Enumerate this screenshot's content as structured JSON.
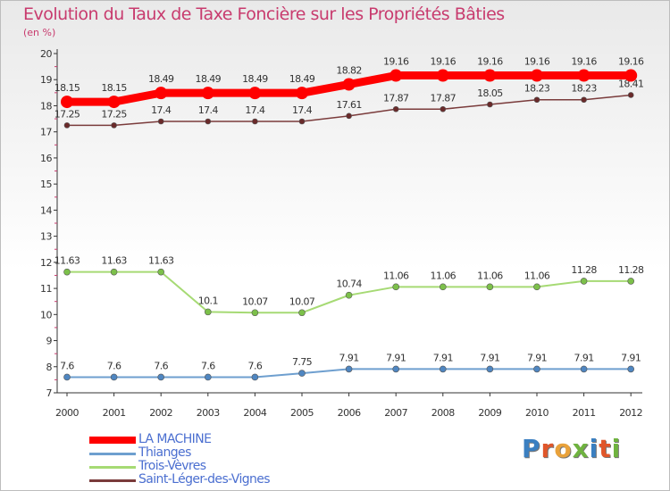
{
  "title": "Evolution du Taux de Taxe Foncière sur les Propriétés Bâties",
  "unit": "(en %)",
  "brand": {
    "text": "Proxiti",
    "colors": [
      "#3a7fc1",
      "#e0562a",
      "#e9a23b",
      "#6fb33f",
      "#3a7fc1",
      "#e0562a",
      "#6fb33f"
    ]
  },
  "chart_data": {
    "type": "line",
    "title": "Evolution du Taux de Taxe Foncière sur les Propriétés Bâties",
    "ylabel": "(en %)",
    "xlabel": "",
    "x": [
      "2000",
      "2001",
      "2002",
      "2003",
      "2004",
      "2005",
      "2006",
      "2007",
      "2008",
      "2009",
      "2010",
      "2011",
      "2012"
    ],
    "ylim": [
      7,
      20
    ],
    "yticks": [
      7,
      8,
      9,
      10,
      11,
      12,
      13,
      14,
      15,
      16,
      17,
      18,
      19,
      20
    ],
    "grid": false,
    "legend_position": "bottom-left",
    "series": [
      {
        "name": "LA MACHINE",
        "color": "#ff0000",
        "line_width": 9,
        "marker_radius": 7,
        "values": [
          18.15,
          18.15,
          18.49,
          18.49,
          18.49,
          18.49,
          18.82,
          19.16,
          19.16,
          19.16,
          19.16,
          19.16,
          19.16
        ],
        "labels": [
          "18.15",
          "18.15",
          "18.49",
          "18.49",
          "18.49",
          "18.49",
          "18.82",
          "19.16",
          "19.16",
          "19.16",
          "19.16",
          "19.16",
          "19.16"
        ]
      },
      {
        "name": "Thianges",
        "color": "#6e9fcf",
        "marker_color": "#4f86c1",
        "line_width": 2,
        "marker_radius": 3.5,
        "values": [
          7.6,
          7.6,
          7.6,
          7.6,
          7.6,
          7.75,
          7.91,
          7.91,
          7.91,
          7.91,
          7.91,
          7.91,
          7.91
        ],
        "labels": [
          "7.6",
          "7.6",
          "7.6",
          "7.6",
          "7.6",
          "7.75",
          "7.91",
          "7.91",
          "7.91",
          "7.91",
          "7.91",
          "7.91",
          "7.91"
        ]
      },
      {
        "name": "Trois-Vèvres",
        "color": "#a6da74",
        "marker_color": "#7cc04a",
        "line_width": 2,
        "marker_radius": 3.5,
        "values": [
          11.63,
          11.63,
          11.63,
          10.1,
          10.07,
          10.07,
          10.74,
          11.06,
          11.06,
          11.06,
          11.06,
          11.28,
          11.28
        ],
        "labels": [
          "11.63",
          "11.63",
          "11.63",
          "10.1",
          "10.07",
          "10.07",
          "10.74",
          "11.06",
          "11.06",
          "11.06",
          "11.06",
          "11.28",
          "11.28"
        ]
      },
      {
        "name": "Saint-Léger-des-Vignes",
        "color": "#7a3b3b",
        "marker_color": "#6a2a2a",
        "line_width": 1.5,
        "marker_radius": 3,
        "values": [
          17.25,
          17.25,
          17.4,
          17.4,
          17.4,
          17.4,
          17.61,
          17.87,
          17.87,
          18.05,
          18.23,
          18.23,
          18.41
        ],
        "labels": [
          "17.25",
          "17.25",
          "17.4",
          "17.4",
          "17.4",
          "17.4",
          "17.61",
          "17.87",
          "17.87",
          "18.05",
          "18.23",
          "18.23",
          "18.41"
        ]
      }
    ],
    "colors": {
      "axis": "#333333",
      "tick_label": "#333333",
      "data_label": "#333333",
      "accent_minor_ticks": "#c83b6e"
    }
  }
}
